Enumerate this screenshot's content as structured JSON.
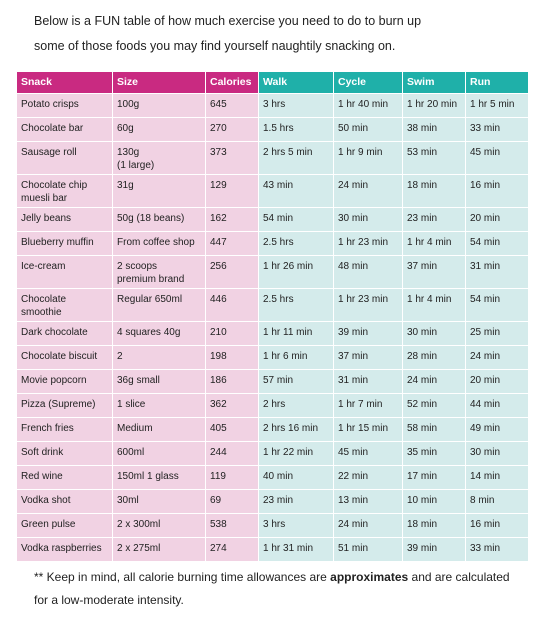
{
  "intro": {
    "lines": [
      "Below is a FUN table of how much exercise you need to do to burn up",
      "some of those foods you may find yourself naughtily snacking on."
    ]
  },
  "table": {
    "header": [
      "Snack",
      "Size",
      "Calories",
      "Walk",
      "Cycle",
      "Swim",
      "Run"
    ],
    "rows": [
      [
        "Potato crisps",
        "100g",
        645,
        "3 hrs",
        "1 hr 40 min",
        "1 hr 20 min",
        "1 hr 5 min"
      ],
      [
        "Chocolate bar",
        "60g",
        270,
        "1.5 hrs",
        "50 min",
        "38 min",
        "33 min"
      ],
      [
        "Sausage roll",
        "130g\n(1 large)",
        373,
        "2 hrs 5 min",
        "1 hr 9 min",
        "53 min",
        "45 min"
      ],
      [
        "Chocolate chip\nmuesli bar",
        "31g",
        129,
        "43 min",
        "24 min",
        "18 min",
        "16 min"
      ],
      [
        "Jelly beans",
        "50g (18 beans)",
        162,
        "54 min",
        "30 min",
        "23 min",
        "20 min"
      ],
      [
        "Blueberry muffin",
        "From coffee shop",
        447,
        "2.5 hrs",
        "1 hr 23 min",
        "1 hr 4 min",
        "54 min"
      ],
      [
        "Ice-cream",
        "2 scoops\npremium brand",
        256,
        "1 hr 26 min",
        "48 min",
        "37 min",
        "31 min"
      ],
      [
        "Chocolate\nsmoothie",
        "Regular 650ml",
        446,
        "2.5 hrs",
        "1 hr 23 min",
        "1 hr 4 min",
        "54 min"
      ],
      [
        "Dark chocolate",
        "4 squares 40g",
        210,
        "1 hr 11 min",
        "39 min",
        "30 min",
        "25 min"
      ],
      [
        "Chocolate biscuit",
        "2",
        198,
        "1 hr 6 min",
        "37 min",
        "28 min",
        "24 min"
      ],
      [
        "Movie popcorn",
        "36g small",
        186,
        "57 min",
        "31 min",
        "24 min",
        "20 min"
      ],
      [
        "Pizza (Supreme)",
        "1 slice",
        362,
        "2 hrs",
        "1 hr 7 min",
        "52 min",
        "44 min"
      ],
      [
        "French fries",
        "Medium",
        405,
        "2 hrs 16 min",
        "1 hr 15 min",
        "58 min",
        "49 min"
      ],
      [
        "Soft drink",
        "600ml",
        244,
        "1 hr 22 min",
        "45 min",
        "35 min",
        "30 min"
      ],
      [
        "Red wine",
        "150ml 1 glass",
        119,
        "40 min",
        "22 min",
        "17 min",
        "14 min"
      ],
      [
        "Vodka shot",
        "30ml",
        69,
        "23 min",
        "13 min",
        "10 min",
        "8 min"
      ],
      [
        "Green pulse",
        "2 x 300ml",
        538,
        "3 hrs",
        "24 min",
        "18 min",
        "16 min"
      ],
      [
        "Vodka raspberries",
        "2 x 275ml",
        274,
        "1 hr 31 min",
        "51 min",
        "39 min",
        "33 min"
      ]
    ]
  },
  "footnote": {
    "before": "** Keep in mind, all calorie burning time allowances are ",
    "bold": "approximates",
    "after": " and are calculated for a low-moderate intensity."
  }
}
